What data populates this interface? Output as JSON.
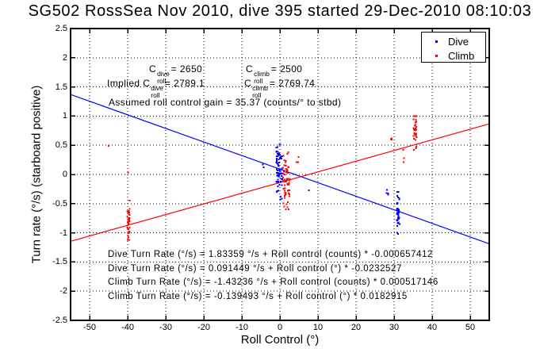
{
  "title": "SG502 RossSea Nov 2010, dive 395 started 29-Dec-2010 08:10:03",
  "chart_data": {
    "type": "scatter",
    "title": "SG502 RossSea Nov 2010, dive 395 started 29-Dec-2010 08:10:03",
    "xlabel": "Roll Control (°)",
    "ylabel": "Turn rate (°/s) (starboard positive)",
    "xlim": [
      -55,
      55
    ],
    "ylim": [
      -2.5,
      2.5
    ],
    "xtick_labels": [
      "-50",
      "-40",
      "-30",
      "-20",
      "-10",
      "0",
      "10",
      "20",
      "30",
      "40",
      "50"
    ],
    "ytick_labels": [
      "-2.5",
      "-2",
      "-1.5",
      "-1",
      "-0.5",
      "0",
      "0.5",
      "1",
      "1.5",
      "2",
      "2.5"
    ],
    "grid": true,
    "legend": {
      "position": "top-right",
      "entries": [
        {
          "label": "Dive",
          "color": "#0000ff"
        },
        {
          "label": "Climb",
          "color": "#ff0000"
        }
      ]
    },
    "series": [
      {
        "name": "Dive",
        "color": "#0000ff",
        "marker": "point",
        "clusters": [
          {
            "x": -0.1,
            "xs": 0.9,
            "y": 0.12,
            "ys": 0.22,
            "ymin": -0.58,
            "ymax": 0.55,
            "n": 75
          },
          {
            "x": 31.0,
            "xs": 0.45,
            "y": -0.62,
            "ys": 0.18,
            "ymin": -1.02,
            "ymax": -0.3,
            "n": 40
          },
          {
            "x": 28.2,
            "xs": 0.3,
            "y": -0.3,
            "ys": 0.06,
            "ymin": -0.42,
            "ymax": -0.22,
            "n": 4
          },
          {
            "x": -4.5,
            "xs": 0.4,
            "y": 0.14,
            "ys": 0.04,
            "ymin": 0.08,
            "ymax": 0.2,
            "n": 2
          },
          {
            "x": 7.7,
            "xs": 0.1,
            "y": -0.29,
            "ys": 0.02,
            "ymin": -0.33,
            "ymax": -0.25,
            "n": 1
          }
        ]
      },
      {
        "name": "Climb",
        "color": "#ff0000",
        "marker": "point",
        "clusters": [
          {
            "x": 1.7,
            "xs": 0.9,
            "y": -0.12,
            "ys": 0.24,
            "ymin": -0.6,
            "ymax": 0.38,
            "n": 65
          },
          {
            "x": -39.8,
            "xs": 0.35,
            "y": -0.8,
            "ys": 0.17,
            "ymin": -1.12,
            "ymax": -0.42,
            "n": 35
          },
          {
            "x": 35.5,
            "xs": 0.45,
            "y": 0.76,
            "ys": 0.16,
            "ymin": 0.36,
            "ymax": 1.0,
            "n": 35
          },
          {
            "x": 32.6,
            "xs": 0.25,
            "y": 0.28,
            "ys": 0.1,
            "ymin": 0.12,
            "ymax": 0.42,
            "n": 3
          },
          {
            "x": 29.3,
            "xs": 0.25,
            "y": 0.6,
            "ys": 0.05,
            "ymin": 0.5,
            "ymax": 0.66,
            "n": 3
          },
          {
            "x": 4.6,
            "xs": 0.5,
            "y": 0.24,
            "ys": 0.05,
            "ymin": 0.16,
            "ymax": 0.3,
            "n": 3
          },
          {
            "x": -45.0,
            "xs": 0.1,
            "y": 0.48,
            "ys": 0.01,
            "ymin": 0.45,
            "ymax": 0.5,
            "n": 1
          },
          {
            "x": -39.8,
            "xs": 0.1,
            "y": 0.03,
            "ys": 0.01,
            "ymin": 0.0,
            "ymax": 0.05,
            "n": 1
          }
        ]
      }
    ],
    "fit_lines": [
      {
        "name": "Dive fit",
        "color": "#0000ff",
        "intercept_deg": 0.091449,
        "slope_deg": -0.0232527
      },
      {
        "name": "Climb fit",
        "color": "#ff0000",
        "intercept_deg": -0.139493,
        "slope_deg": 0.0182915
      }
    ],
    "annotations": {
      "coef_row1": {
        "term1_base": "C",
        "term1_sup": "dive",
        "term1_sub": "roll",
        "term1_value": "= 2650",
        "term2_base": "C",
        "term2_sup": "climb",
        "term2_sub": "roll",
        "term2_value": "= 2500"
      },
      "coef_row2": {
        "prefix": "Implied",
        "term1_base": "C",
        "term1_sup": "dive",
        "term1_sub": "roll",
        "term1_value": "= 2789.1",
        "term2_base": "C",
        "term2_sup": "climb",
        "term2_sub": "roll",
        "term2_value": "= 2769.74"
      },
      "gain_line": "Assumed roll control gain = 35.37 (counts/° to stbd)",
      "equations": [
        "Dive Turn Rate (°/s) = 1.83359 °/s + Roll control (counts) * -0.000657412",
        "Dive Turn Rate (°/s) = 0.091449 °/s + Roll control (°) * -0.0232527",
        "Climb Turn Rate (°/s) = -1.43236 °/s + Roll control (counts) * 0.000517146",
        "Climb Turn Rate (°/s) = -0.139493 °/s + Roll control (°) * 0.0182915"
      ]
    }
  }
}
